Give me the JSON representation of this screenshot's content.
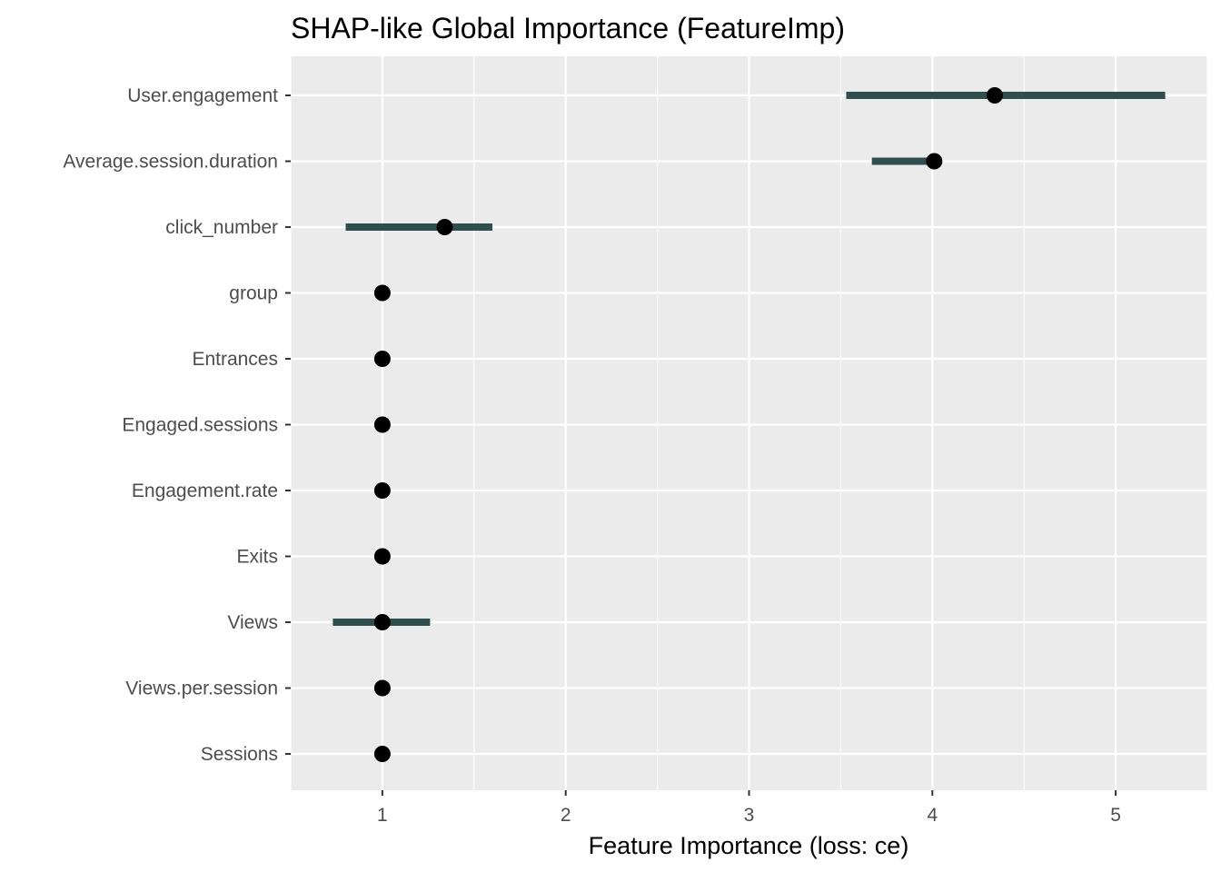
{
  "chart_data": {
    "type": "scatter",
    "title": "SHAP-like Global Importance (FeatureImp)",
    "xlabel": "Feature Importance (loss: ce)",
    "ylabel": "",
    "xlim": [
      0.5,
      5.5
    ],
    "x_ticks": [
      "1",
      "2",
      "3",
      "4",
      "5"
    ],
    "x_tick_values": [
      1,
      2,
      3,
      4,
      5
    ],
    "grid": true,
    "features": [
      {
        "name": "User.engagement",
        "importance": 4.34,
        "lower": 3.53,
        "upper": 5.27
      },
      {
        "name": "Average.session.duration",
        "importance": 4.01,
        "lower": 3.67,
        "upper": 4.01
      },
      {
        "name": "click_number",
        "importance": 1.34,
        "lower": 0.8,
        "upper": 1.6
      },
      {
        "name": "group",
        "importance": 1.0,
        "lower": 1.0,
        "upper": 1.0
      },
      {
        "name": "Entrances",
        "importance": 1.0,
        "lower": 1.0,
        "upper": 1.0
      },
      {
        "name": "Engaged.sessions",
        "importance": 1.0,
        "lower": 1.0,
        "upper": 1.0
      },
      {
        "name": "Engagement.rate",
        "importance": 1.0,
        "lower": 1.0,
        "upper": 1.0
      },
      {
        "name": "Exits",
        "importance": 1.0,
        "lower": 1.0,
        "upper": 1.0
      },
      {
        "name": "Views",
        "importance": 1.0,
        "lower": 0.73,
        "upper": 1.26
      },
      {
        "name": "Views.per.session",
        "importance": 1.0,
        "lower": 1.0,
        "upper": 1.0
      },
      {
        "name": "Sessions",
        "importance": 1.0,
        "lower": 1.0,
        "upper": 1.0
      }
    ],
    "colors": {
      "panel_background": "#ebebeb",
      "grid": "#ffffff",
      "interval": "#2f4f4f",
      "point": "#000000",
      "tick_text": "#4d4d4d",
      "tick_mark": "#333333"
    }
  }
}
